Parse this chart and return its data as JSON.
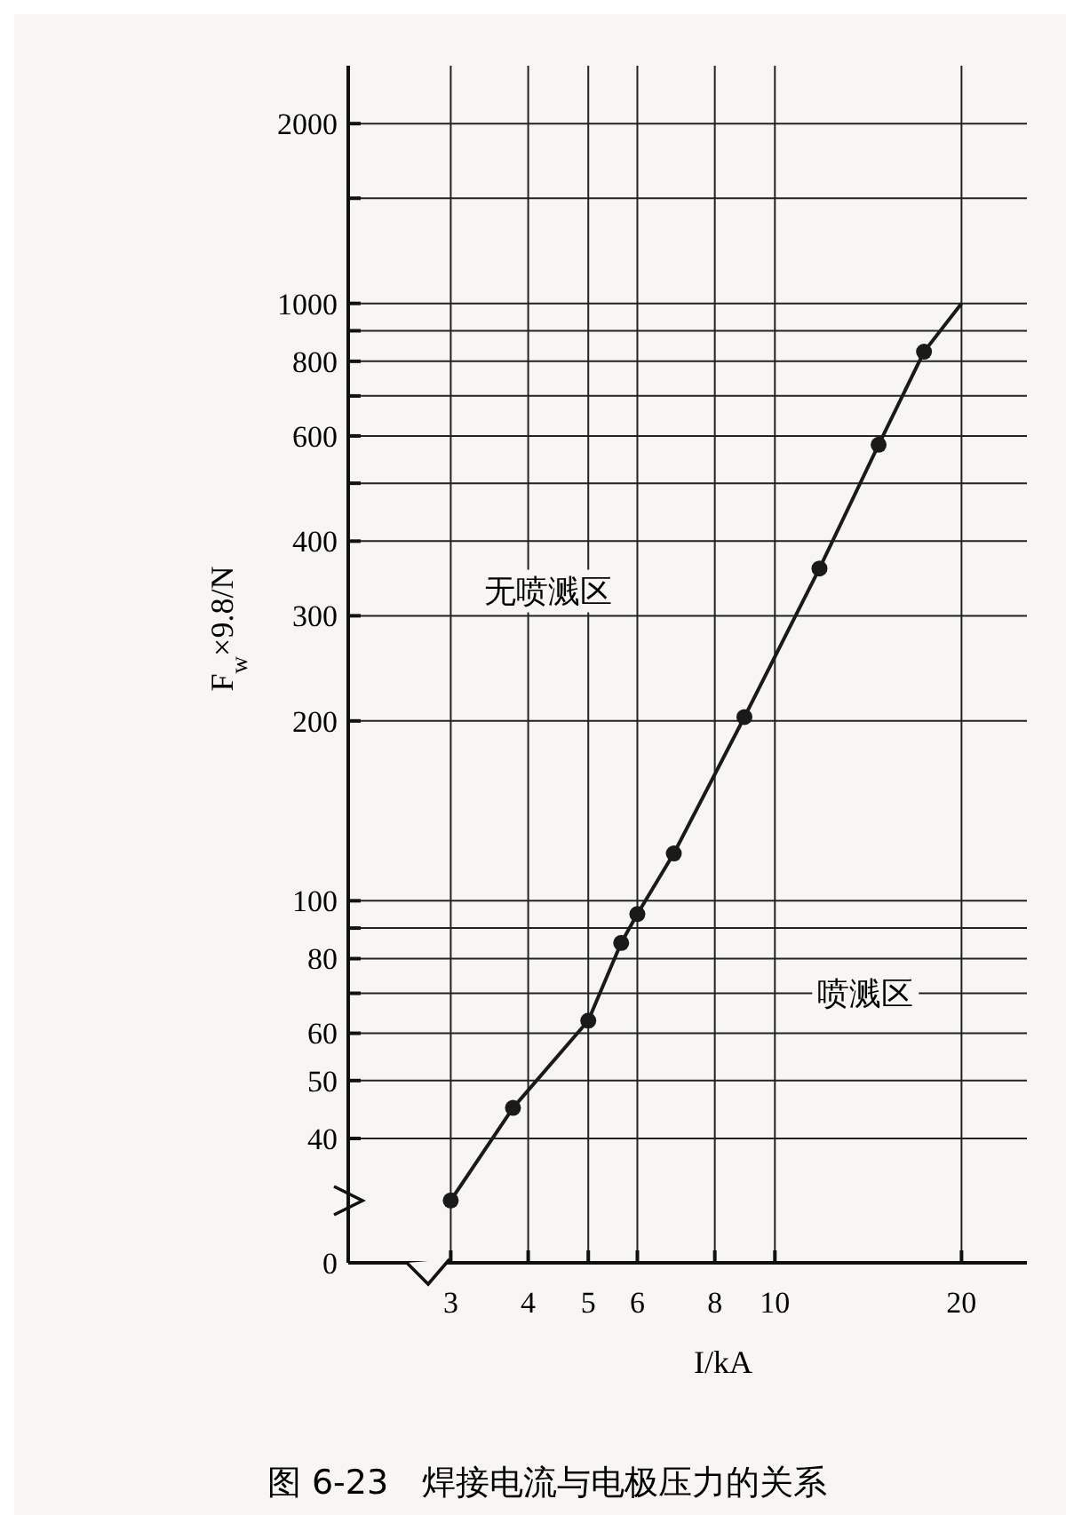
{
  "chart_data": {
    "type": "line",
    "title": "图 6-23　焊接电流与电极压力的关系",
    "xlabel": "I/kA",
    "ylabel": "F$_{w}$×9.8/N",
    "log": "xy",
    "grid": true,
    "xlim": [
      2.05,
      25.5
    ],
    "xticks": [
      3,
      4,
      5,
      6,
      8,
      10,
      20
    ],
    "ylim": [
      0,
      2500
    ],
    "yticks": [
      0,
      40,
      50,
      60,
      {
        "value": 70,
        "label": null
      },
      80,
      {
        "value": 90,
        "label": null
      },
      100,
      200,
      300,
      400,
      {
        "value": 500,
        "label": null
      },
      600,
      {
        "value": 700,
        "label": null
      },
      800,
      {
        "value": 900,
        "label": null
      },
      1000,
      {
        "value": 1500,
        "label": null
      },
      2000
    ],
    "series": [
      {
        "color": "#1a1a1a",
        "marker": "none",
        "line_style": "solid",
        "x": [
          3,
          3.78,
          5,
          5.65,
          6,
          6.87,
          8.93,
          11.8,
          14.7,
          17.4,
          20
        ],
        "values": [
          31.5,
          45,
          63,
          85,
          95,
          120,
          203,
          360,
          580,
          830,
          1000
        ]
      },
      {
        "type": "scatter",
        "color": "#1a1a1a",
        "marker": "circle",
        "x": [
          3,
          3.78,
          5,
          5.65,
          6,
          6.87,
          8.93,
          11.8,
          14.7,
          17.4
        ],
        "values": [
          31.5,
          45,
          63,
          85,
          95,
          120,
          203,
          360,
          580,
          830
        ]
      }
    ],
    "annotations": [
      "无喷溅区",
      "喷溅区"
    ]
  }
}
